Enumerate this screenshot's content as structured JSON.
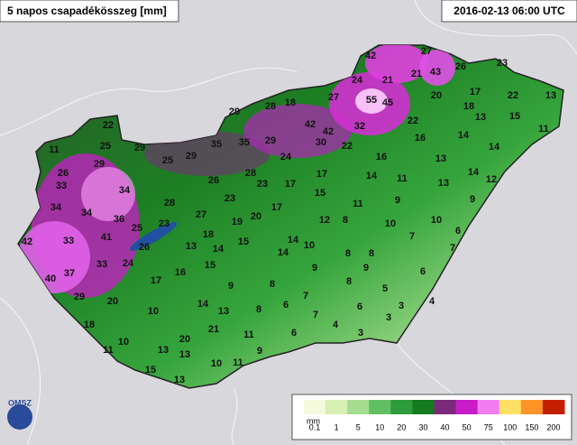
{
  "header": {
    "title": "5 napos csapadékösszeg [mm]",
    "timestamp": "2016-02-13 06:00 UTC"
  },
  "stations": [
    42,
    27,
    21,
    43,
    26,
    23,
    24,
    21,
    27,
    55,
    45,
    20,
    17,
    22,
    13,
    29,
    28,
    18,
    42,
    32,
    18,
    13,
    15,
    22,
    11,
    22,
    42,
    30,
    22,
    16,
    14,
    35,
    35,
    29,
    11,
    25,
    29,
    24,
    16,
    14,
    13,
    26,
    29,
    25,
    29,
    28,
    17,
    15,
    14,
    11,
    13,
    14,
    12,
    33,
    34,
    26,
    23,
    17,
    23,
    28,
    11,
    9,
    9,
    34,
    34,
    36,
    27,
    19,
    20,
    17,
    12,
    8,
    10,
    10,
    42,
    33,
    41,
    25,
    23,
    18,
    26,
    13,
    14,
    15,
    14,
    10,
    14,
    8,
    8,
    7,
    6,
    7,
    40,
    37,
    33,
    24,
    17,
    16,
    15,
    9,
    9,
    6,
    29,
    20,
    9,
    8,
    7,
    8,
    5,
    6,
    4,
    3,
    10,
    14,
    13,
    8,
    6,
    7,
    4,
    3,
    18,
    21,
    11,
    6,
    3,
    11,
    10,
    13,
    20,
    9,
    13,
    15,
    10,
    11,
    13
  ],
  "legend": {
    "unit": "mm",
    "labels": [
      "0.1",
      "1",
      "5",
      "10",
      "20",
      "30",
      "40",
      "50",
      "75",
      "100",
      "150",
      "200"
    ],
    "colors": [
      "#f4fadc",
      "#d6f0b4",
      "#a6dc90",
      "#62c064",
      "#2e9c3c",
      "#157a20",
      "#7a2a7a",
      "#c81cc8",
      "#f07cf0",
      "#ffe066",
      "#ff9428",
      "#c42000"
    ]
  },
  "logo": {
    "text": "OMSZ"
  }
}
